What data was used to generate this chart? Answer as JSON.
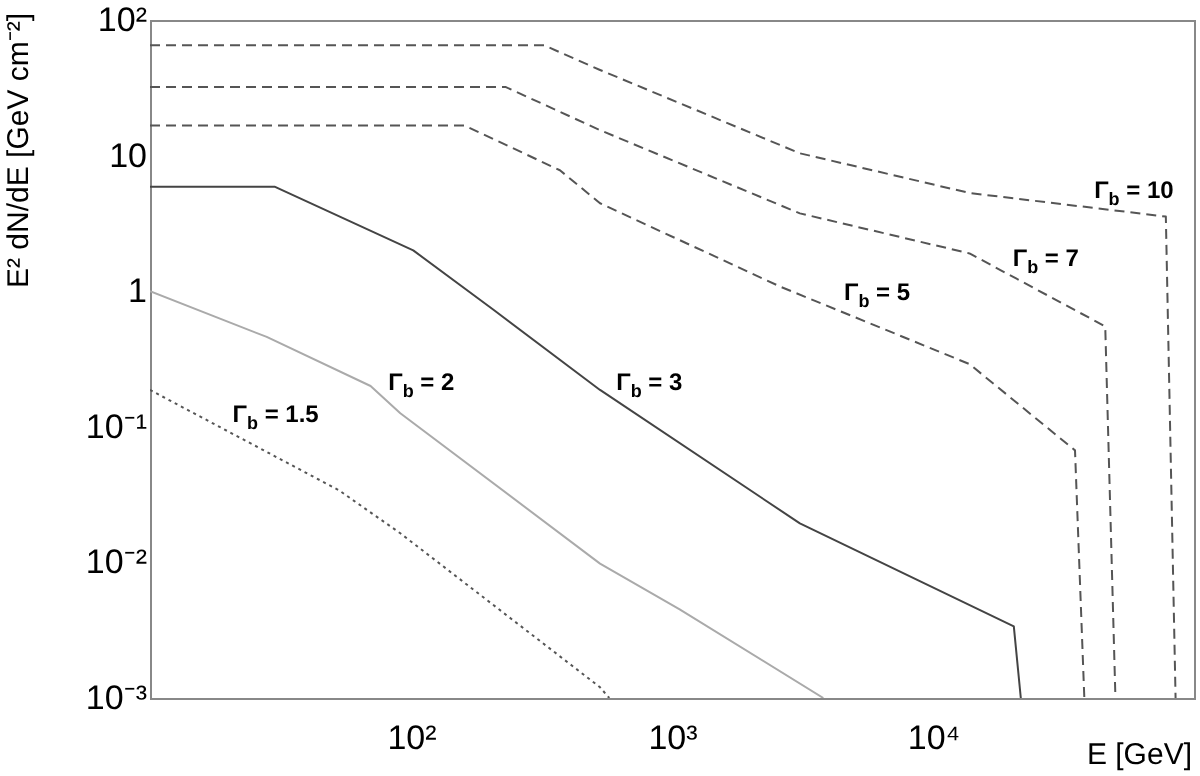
{
  "chart_data": {
    "type": "line",
    "xlabel": "E [GeV]",
    "ylabel": "E² dN/dE [GeV cm⁻²]",
    "log": "xy",
    "grid": false,
    "marker": "none",
    "xlim": [
      10,
      100000
    ],
    "ylim": [
      0.001,
      100
    ],
    "xticks": [
      {
        "value": 100,
        "label": "10²"
      },
      {
        "value": 1000,
        "label": "10³"
      },
      {
        "value": 10000,
        "label": "10⁴"
      }
    ],
    "yticks": [
      {
        "value": 0.001,
        "label": "10⁻³"
      },
      {
        "value": 0.01,
        "label": "10⁻²"
      },
      {
        "value": 0.1,
        "label": "10⁻¹"
      },
      1,
      10,
      {
        "value": 100,
        "label": "10²"
      }
    ],
    "series": [
      {
        "color": "#555555",
        "line_style": "dashed",
        "x": [
          10,
          324,
          530,
          3090,
          13800,
          78000,
          85000
        ],
        "values": [
          65,
          65,
          42.8,
          10.4,
          5.3,
          3.55,
          0.001
        ]
      },
      {
        "color": "#555555",
        "line_style": "dashed",
        "x": [
          10,
          231,
          530,
          3090,
          13800,
          45700,
          50000
        ],
        "values": [
          32,
          32,
          15.4,
          3.75,
          1.9,
          0.55,
          0.001
        ]
      },
      {
        "color": "#555555",
        "line_style": "dashed",
        "x": [
          10,
          160,
          372,
          530,
          2600,
          13800,
          35000,
          38000
        ],
        "values": [
          16.7,
          16.7,
          7.8,
          4.45,
          1.08,
          0.29,
          0.067,
          0.001
        ]
      },
      {
        "color": "#444444",
        "line_style": "solid",
        "x": [
          10,
          30,
          102,
          207,
          530,
          3090,
          20400,
          21700
        ],
        "values": [
          5.9,
          5.9,
          2.0,
          0.73,
          0.187,
          0.0194,
          0.00337,
          0.001
        ]
      },
      {
        "color": "#aaaaaa",
        "line_style": "solid",
        "x": [
          10,
          28,
          70,
          91,
          530,
          1070,
          3800
        ],
        "values": [
          1.0,
          0.46,
          0.2,
          0.126,
          0.0098,
          0.0045,
          0.001
        ]
      },
      {
        "color": "#555555",
        "line_style": "dotted",
        "x": [
          10,
          53,
          91,
          530,
          575
        ],
        "values": [
          0.187,
          0.034,
          0.0164,
          0.0012,
          0.001
        ]
      }
    ],
    "annotations": [
      {
        "text": "Γ$_{b}$ = 10",
        "x": 40000,
        "y": 4.1
      },
      {
        "text": "Γ$_{b}$ = 7",
        "x": 19500,
        "y": 1.3
      },
      {
        "text": "Γ$_{b}$ = 5",
        "x": 4400,
        "y": 0.72
      },
      {
        "text": "Γ$_{b}$ = 3",
        "x": 590,
        "y": 0.16
      },
      {
        "text": "Γ$_{b}$ = 2",
        "x": 79,
        "y": 0.16
      },
      {
        "text": "Γ$_{b}$ = 1.5",
        "x": 20,
        "y": 0.092
      }
    ]
  }
}
